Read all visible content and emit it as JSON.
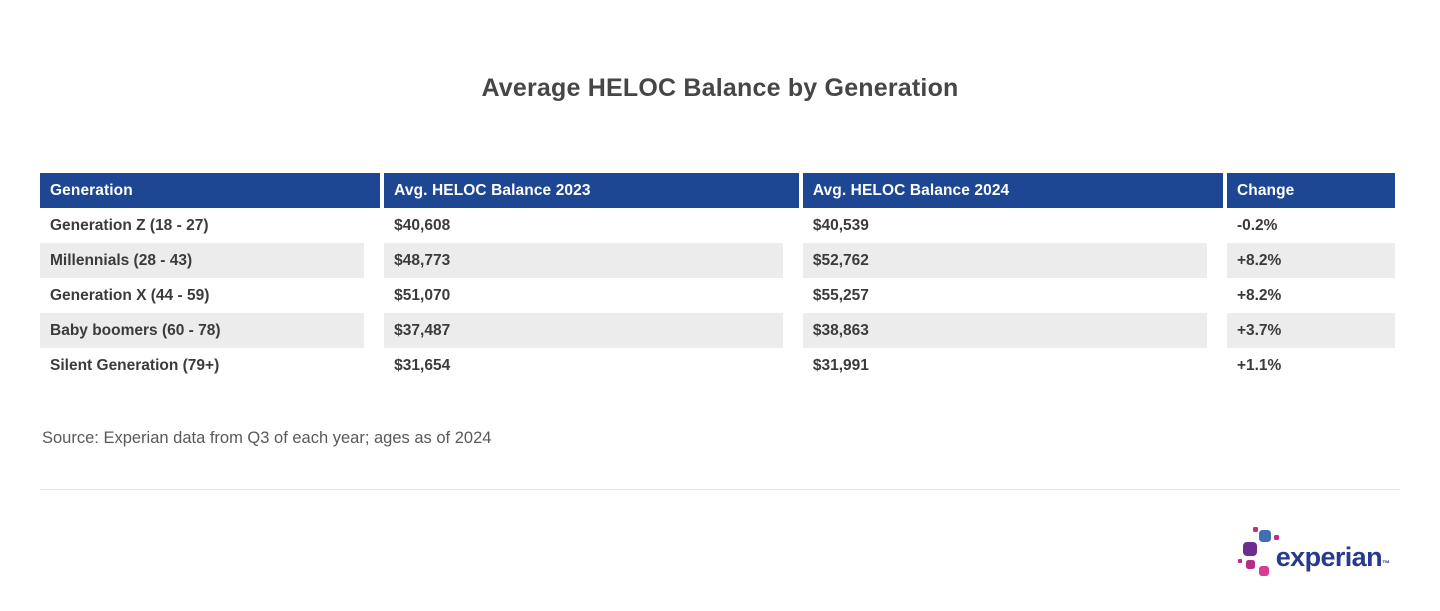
{
  "page": {
    "title": "Average HELOC Balance by Generation",
    "source_note": "Source: Experian data from Q3 of each year; ages as of 2024"
  },
  "table": {
    "columns": [
      "Generation",
      "Avg. HELOC Balance 2023",
      "Avg. HELOC Balance 2024",
      "Change"
    ],
    "rows": [
      {
        "generation": "Generation Z (18 - 27)",
        "balance_2023": "$40,608",
        "balance_2024": "$40,539",
        "change": "-0.2%"
      },
      {
        "generation": "Millennials (28 - 43)",
        "balance_2023": "$48,773",
        "balance_2024": "$52,762",
        "change": "+8.2%"
      },
      {
        "generation": "Generation X (44 - 59)",
        "balance_2023": "$51,070",
        "balance_2024": "$55,257",
        "change": "+8.2%"
      },
      {
        "generation": "Baby boomers (60 - 78)",
        "balance_2023": "$37,487",
        "balance_2024": "$38,863",
        "change": "+3.7%"
      },
      {
        "generation": "Silent Generation (79+)",
        "balance_2023": "$31,654",
        "balance_2024": "$31,991",
        "change": "+1.1%"
      }
    ]
  },
  "chart_data": {
    "type": "table",
    "title": "Average HELOC Balance by Generation",
    "columns": [
      "Generation",
      "Avg. HELOC Balance 2023",
      "Avg. HELOC Balance 2024",
      "Change"
    ],
    "categories": [
      "Generation Z (18 - 27)",
      "Millennials (28 - 43)",
      "Generation X (44 - 59)",
      "Baby boomers (60 - 78)",
      "Silent Generation (79+)"
    ],
    "series": [
      {
        "name": "Avg. HELOC Balance 2023",
        "values": [
          40608,
          48773,
          51070,
          37487,
          31654
        ]
      },
      {
        "name": "Avg. HELOC Balance 2024",
        "values": [
          40539,
          52762,
          55257,
          38863,
          31991
        ]
      },
      {
        "name": "Change",
        "values": [
          "-0.2%",
          "+8.2%",
          "+8.2%",
          "+3.7%",
          "+1.1%"
        ]
      }
    ],
    "source": "Source: Experian data from Q3 of each year; ages as of 2024",
    "layout": {
      "header_background": "#1d4693",
      "alt_row_background": "#ececec",
      "grid": "off"
    }
  },
  "logo": {
    "brand": "experian",
    "trademark": "™",
    "colors": {
      "wordmark_blue": "#283a8e",
      "square_blue": "#416fb4",
      "square_purple": "#6d2d8c",
      "square_magenta": "#c22b88",
      "square_pink": "#d83a94"
    }
  },
  "colors": {
    "header_background": "#1d4693",
    "header_text": "#ffffff",
    "alt_row_background": "#ececec",
    "body_text": "#3b3b3b",
    "title_text": "#464646"
  }
}
